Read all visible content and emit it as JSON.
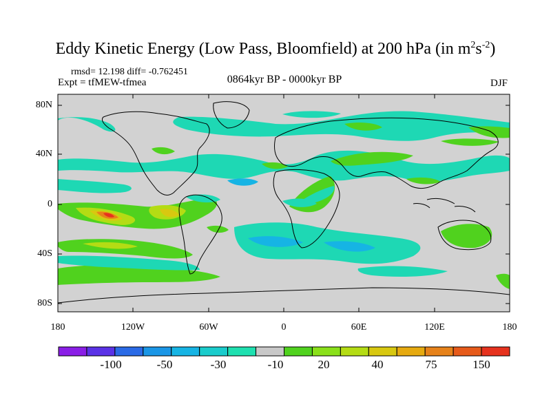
{
  "title": {
    "main": "Eddy Kinetic Energy (Low Pass, Bloomfield) at 200 hPa (in m",
    "sup1": "2",
    "mid": "s",
    "sup2": "-2",
    "end": ")"
  },
  "stats": "rmsd= 12.198 diff= -0.762451",
  "experiment": "Expt = tfMEW-tfmea",
  "period": "0864kyr BP - 0000kyr BP",
  "season": "DJF",
  "latitude_labels": [
    "80N",
    "40N",
    "0",
    "40S",
    "80S"
  ],
  "longitude_labels": [
    "180",
    "120W",
    "60W",
    "0",
    "60E",
    "120E",
    "180"
  ],
  "colorbar": {
    "labels": [
      "-100",
      "-50",
      "-30",
      "-10",
      "20",
      "40",
      "75",
      "150"
    ],
    "colors": [
      "#8a1ee6",
      "#5a32e6",
      "#2a6ae6",
      "#1a96e6",
      "#16b4e4",
      "#1acccc",
      "#1ee0b0",
      "#c8c8c8",
      "#50d21e",
      "#8ae01a",
      "#b4dc14",
      "#d8c810",
      "#e6aa10",
      "#e6821a",
      "#e65a1a",
      "#e6321e"
    ]
  },
  "map_colors": {
    "background": "#d2d2d2",
    "teal": "#1ed8b4",
    "cyan": "#16b4e4",
    "green": "#50d21e",
    "lime": "#b4dc14",
    "yellow": "#d8c810",
    "orange": "#e6821a",
    "red": "#e6321e"
  }
}
